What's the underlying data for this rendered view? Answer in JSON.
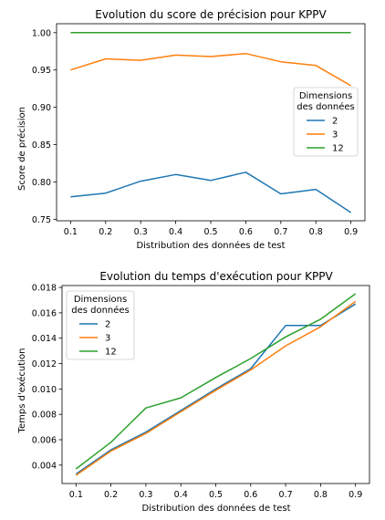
{
  "chart_data": [
    {
      "type": "line",
      "title": "Evolution du score de précision pour KPPV",
      "xlabel": "Distribution des données de test",
      "ylabel": "Score de précision",
      "x": [
        0.1,
        0.2,
        0.3,
        0.4,
        0.5,
        0.6,
        0.7,
        0.8,
        0.9
      ],
      "xticks": [
        "0.1",
        "0.2",
        "0.3",
        "0.4",
        "0.5",
        "0.6",
        "0.7",
        "0.8",
        "0.9"
      ],
      "xlim": [
        0.06,
        0.94
      ],
      "yticks": [
        "0.75",
        "0.80",
        "0.85",
        "0.90",
        "0.95",
        "1.00"
      ],
      "ylim": [
        0.748,
        1.012
      ],
      "legend": {
        "title_lines": [
          "Dimensions",
          "des données"
        ],
        "placement": "center-right"
      },
      "series": [
        {
          "name": "2",
          "color": "#1f77b4",
          "values": [
            0.78,
            0.785,
            0.801,
            0.81,
            0.802,
            0.813,
            0.784,
            0.79,
            0.759
          ]
        },
        {
          "name": "3",
          "color": "#ff7f0e",
          "values": [
            0.95,
            0.965,
            0.963,
            0.97,
            0.968,
            0.972,
            0.961,
            0.956,
            0.929
          ]
        },
        {
          "name": "12",
          "color": "#2ca02c",
          "values": [
            1.0,
            1.0,
            1.0,
            1.0,
            1.0,
            1.0,
            1.0,
            1.0,
            1.0
          ]
        }
      ]
    },
    {
      "type": "line",
      "title": "Evolution du temps d'exécution pour KPPV",
      "xlabel": "Distribution des données de test",
      "ylabel": "Temps d'exécution",
      "x": [
        0.1,
        0.2,
        0.3,
        0.4,
        0.5,
        0.6,
        0.7,
        0.8,
        0.9
      ],
      "xticks": [
        "0.1",
        "0.2",
        "0.3",
        "0.4",
        "0.5",
        "0.6",
        "0.7",
        "0.8",
        "0.9"
      ],
      "xlim": [
        0.06,
        0.94
      ],
      "yticks": [
        "0.004",
        "0.006",
        "0.008",
        "0.010",
        "0.012",
        "0.014",
        "0.016",
        "0.018"
      ],
      "ylim": [
        0.00255,
        0.01815
      ],
      "legend": {
        "title_lines": [
          "Dimensions",
          "des données"
        ],
        "placement": "top-left"
      },
      "series": [
        {
          "name": "2",
          "color": "#1f77b4",
          "values": [
            0.0033,
            0.0052,
            0.0066,
            0.0083,
            0.01,
            0.0116,
            0.015,
            0.015,
            0.0167
          ]
        },
        {
          "name": "3",
          "color": "#ff7f0e",
          "values": [
            0.0032,
            0.0051,
            0.0065,
            0.0082,
            0.0099,
            0.0115,
            0.0134,
            0.0149,
            0.0169
          ]
        },
        {
          "name": "12",
          "color": "#2ca02c",
          "values": [
            0.0037,
            0.0058,
            0.0085,
            0.0093,
            0.0109,
            0.0124,
            0.0141,
            0.0155,
            0.0175
          ]
        }
      ]
    }
  ]
}
